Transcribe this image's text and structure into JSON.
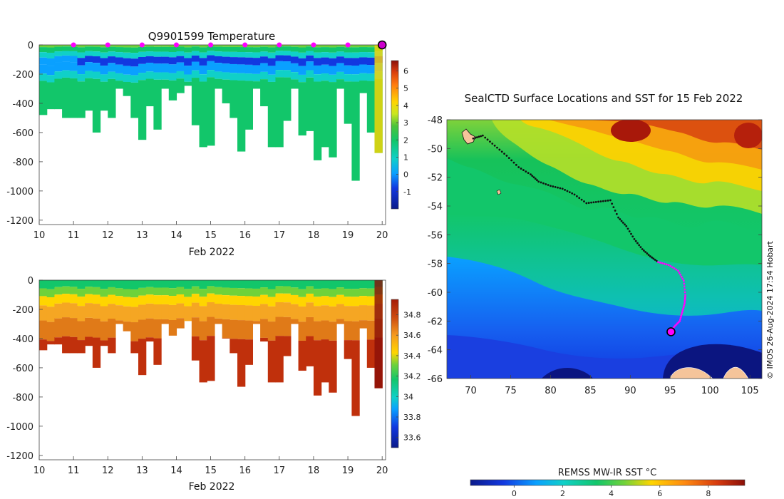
{
  "chart_data": [
    {
      "type": "heatmap",
      "title": "Q9901599  Temperature",
      "xlabel": "Feb 2022",
      "x_ticks": [
        10,
        11,
        12,
        13,
        14,
        15,
        16,
        17,
        18,
        19,
        20
      ],
      "y_ticks": [
        0,
        -200,
        -400,
        -600,
        -800,
        -1000,
        -1200
      ],
      "xlim": [
        10,
        20.1
      ],
      "ylim": [
        -1230,
        0
      ],
      "colorbar": {
        "min": -2,
        "max": 6.6,
        "ticks": [
          -1,
          0,
          1,
          2,
          3,
          4,
          5,
          6
        ]
      },
      "profile_markers_days": [
        11,
        12,
        13,
        14,
        15,
        16,
        17,
        18,
        19
      ],
      "latest_profile_day": 20,
      "colors": {
        "marker": "#ff00ff",
        "latest": "#cc00cc"
      }
    },
    {
      "type": "heatmap",
      "title": "",
      "xlabel": "Feb 2022",
      "x_ticks": [
        10,
        11,
        12,
        13,
        14,
        15,
        16,
        17,
        18,
        19,
        20
      ],
      "y_ticks": [
        0,
        -200,
        -400,
        -600,
        -800,
        -1000,
        -1200
      ],
      "xlim": [
        10,
        20.1
      ],
      "ylim": [
        -1230,
        0
      ],
      "colorbar": {
        "min": 33.5,
        "max": 34.95,
        "ticks": [
          33.6,
          33.8,
          34,
          34.2,
          34.4,
          34.6,
          34.8
        ]
      }
    },
    {
      "type": "heatmap",
      "title": "SealCTD Surface Locations and SST for 15 Feb 2022",
      "x_ticks": [
        70,
        75,
        80,
        85,
        90,
        95,
        100,
        105
      ],
      "y_ticks": [
        -48,
        -50,
        -52,
        -54,
        -56,
        -58,
        -60,
        -62,
        -64,
        -66
      ],
      "xlim": [
        67,
        106.5
      ],
      "ylim": [
        -66,
        -48
      ],
      "colorbar_label": "REMSS MW-IR SST °C",
      "colorbar": {
        "min": -1.8,
        "max": 9.5,
        "ticks": [
          0,
          2,
          4,
          6,
          8
        ]
      },
      "track": [
        [
          70.3,
          -49.3
        ],
        [
          71.5,
          -49.1
        ],
        [
          73,
          -49.8
        ],
        [
          74.5,
          -50.5
        ],
        [
          76,
          -51.3
        ],
        [
          77.5,
          -51.8
        ],
        [
          78.5,
          -52.3
        ],
        [
          80,
          -52.6
        ],
        [
          81.5,
          -52.8
        ],
        [
          83,
          -53.2
        ],
        [
          84.5,
          -53.8
        ],
        [
          86,
          -53.7
        ],
        [
          87.5,
          -53.6
        ],
        [
          88.5,
          -54.8
        ],
        [
          89.5,
          -55.4
        ],
        [
          90.5,
          -56.3
        ],
        [
          91.5,
          -57
        ],
        [
          92.5,
          -57.5
        ],
        [
          93.5,
          -57.9
        ],
        [
          94.8,
          -58.1
        ],
        [
          96,
          -58.5
        ],
        [
          96.7,
          -59.2
        ],
        [
          96.9,
          -60.2
        ],
        [
          96.8,
          -60.8
        ],
        [
          96.5,
          -61.4
        ],
        [
          96.2,
          -62
        ],
        [
          95.5,
          -62.4
        ],
        [
          95,
          -62.8
        ]
      ],
      "recent_track_from_index": 18,
      "latest_location": [
        95.1,
        -62.75
      ],
      "colors": {
        "track": "#111111",
        "recent": "#ff00ff",
        "land": "#f5c49a"
      }
    }
  ],
  "watermark": "© IMOS 26-Aug-2024 17:54 Hobart"
}
